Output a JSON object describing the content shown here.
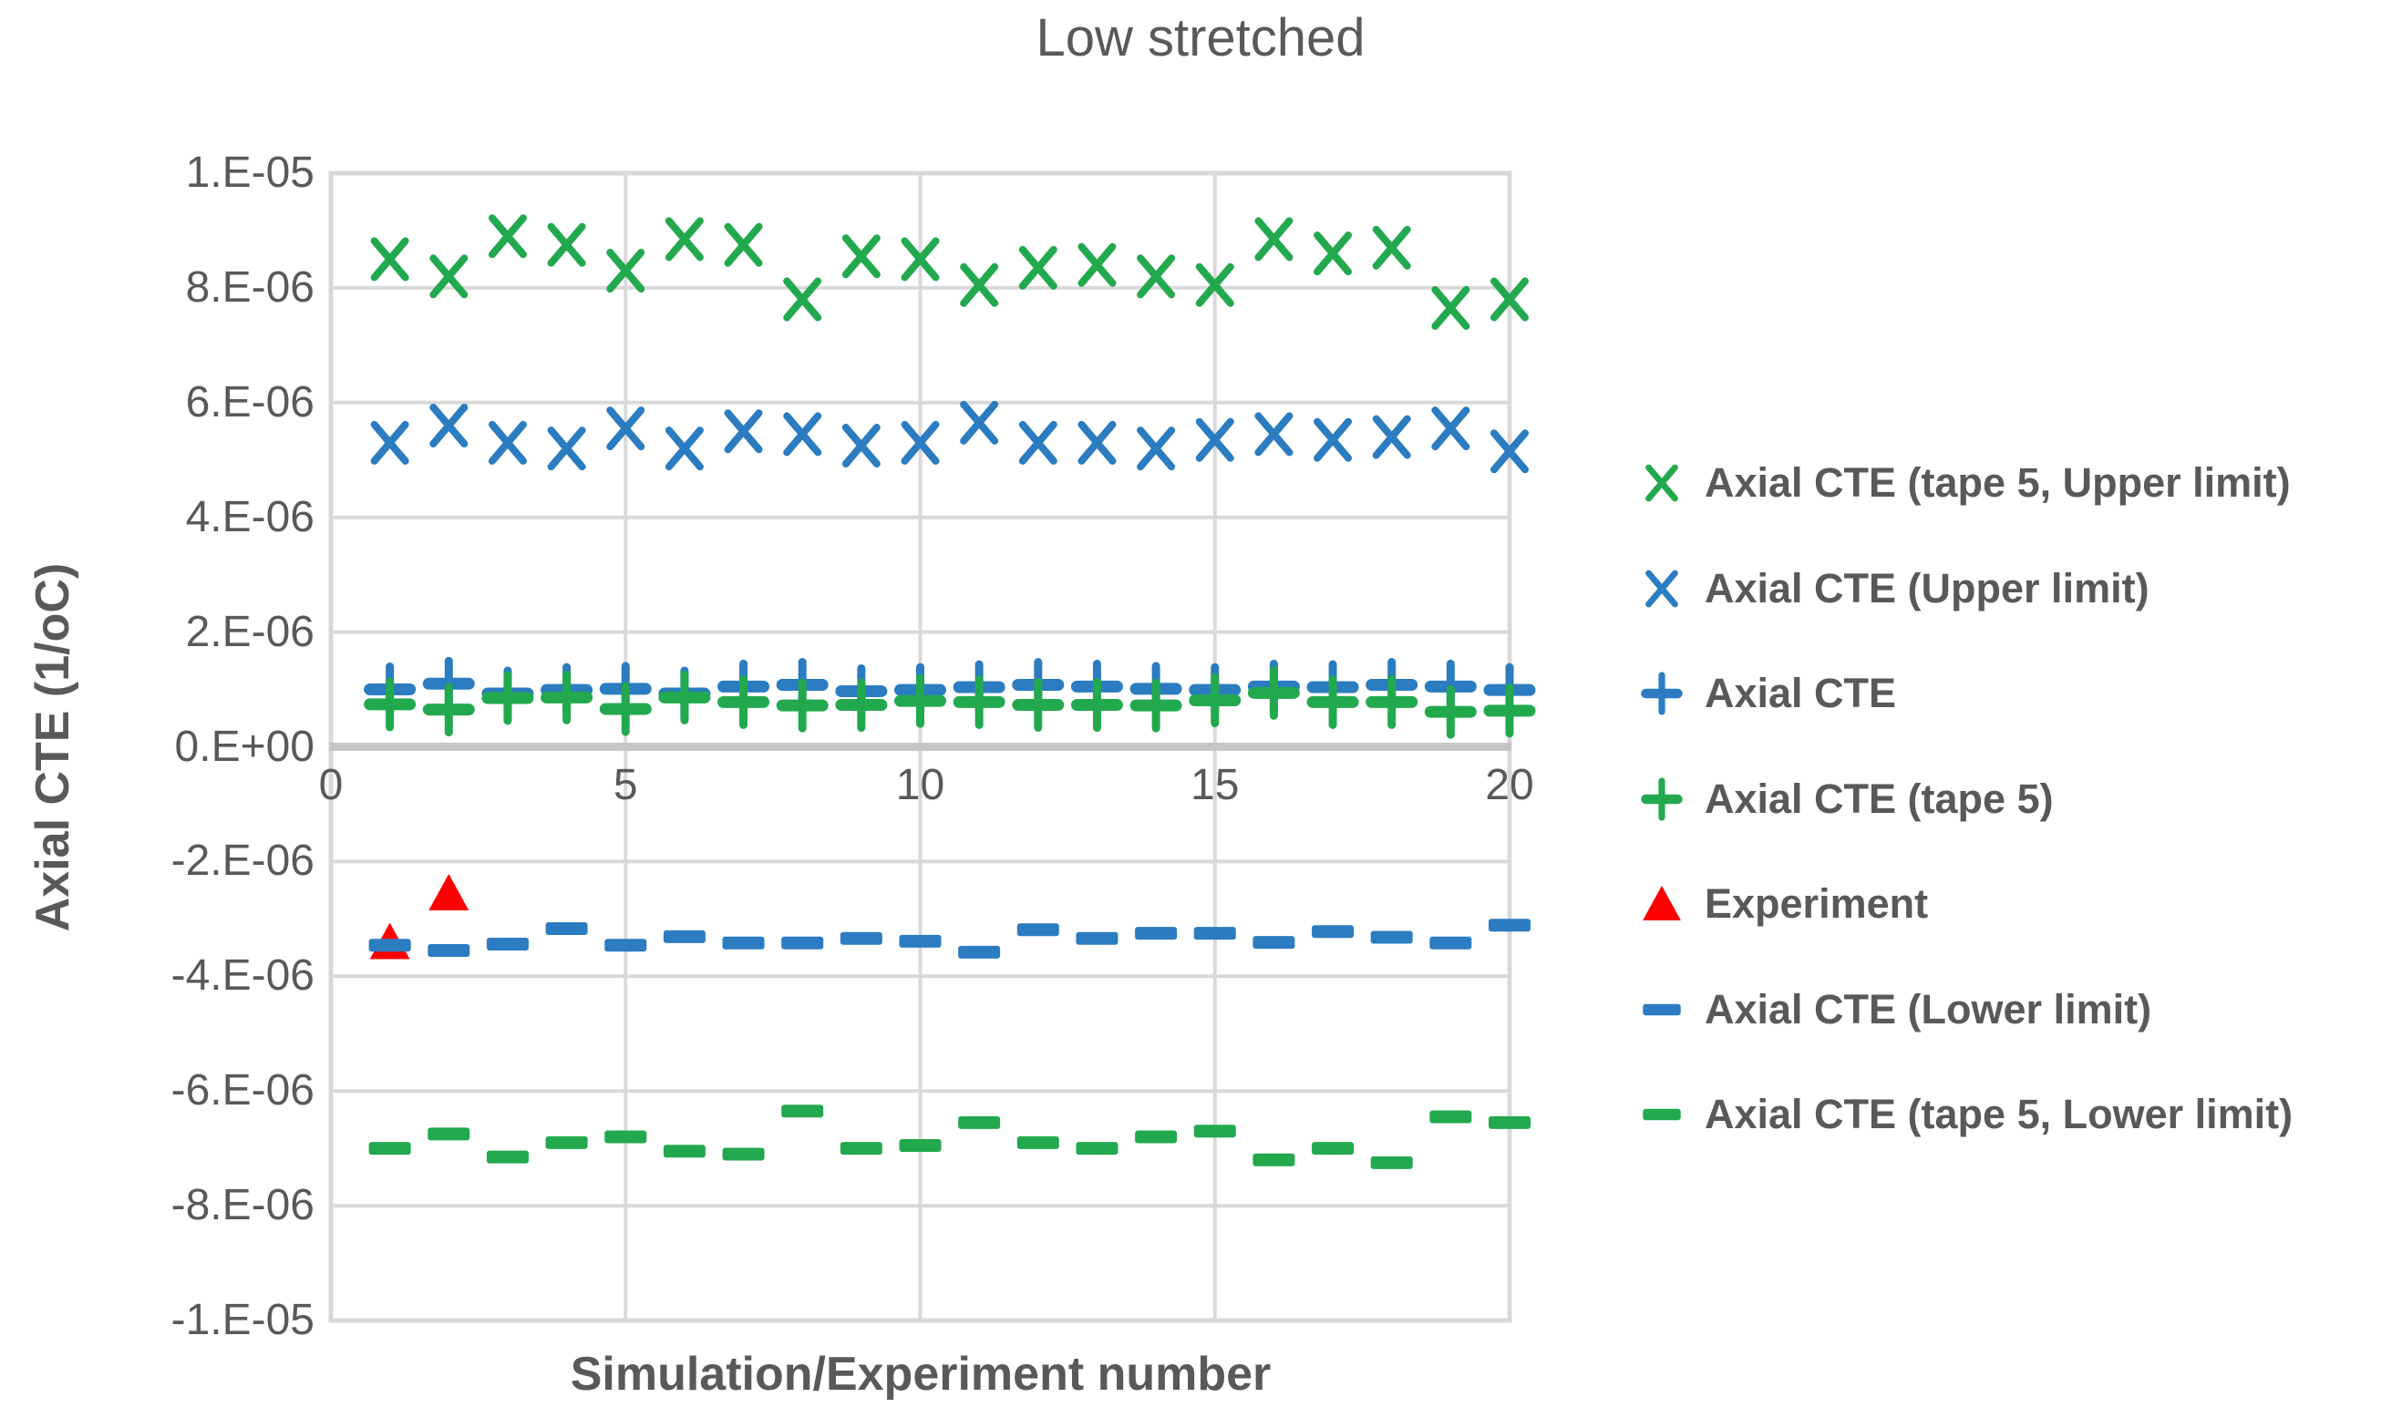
{
  "palette": {
    "green": "#22A94E",
    "blue": "#2B7CC0",
    "red": "#FF0000",
    "text": "#595959",
    "grid": "#D9D9D9",
    "axis_line": "#C6C6C6"
  },
  "chart_data": {
    "type": "scatter",
    "title": "Low stretched",
    "xlabel": "Simulation/Experiment number",
    "ylabel": "Axial CTE (1/oC)",
    "xlim": [
      0,
      20
    ],
    "ylim": [
      -1e-05,
      1e-05
    ],
    "grid": true,
    "legend_position": "right",
    "x_tick_values": [
      0,
      5,
      10,
      15,
      20
    ],
    "x_tick_labels": [
      "0",
      "5",
      "10",
      "15",
      "20"
    ],
    "y_tick_values": [
      1e-05,
      8e-06,
      6e-06,
      4e-06,
      2e-06,
      0.0,
      -2e-06,
      -4e-06,
      -6e-06,
      -8e-06,
      -1e-05
    ],
    "y_tick_labels": [
      "1.E-05",
      "8.E-06",
      "6.E-06",
      "4.E-06",
      "2.E-06",
      "0.E+00",
      "-2.E-06",
      "-4.E-06",
      "-6.E-06",
      "-8.E-06",
      "-1.E-05"
    ],
    "x": [
      1,
      2,
      3,
      4,
      5,
      6,
      7,
      8,
      9,
      10,
      11,
      12,
      13,
      14,
      15,
      16,
      17,
      18,
      19,
      20
    ],
    "series": [
      {
        "name": "Axial CTE (tape 5, Upper limit)",
        "marker": "x-cross",
        "color": "#22A94E",
        "y": [
          8.5e-06,
          8.2e-06,
          8.9e-06,
          8.75e-06,
          8.3e-06,
          8.85e-06,
          8.75e-06,
          7.8e-06,
          8.55e-06,
          8.5e-06,
          8.05e-06,
          8.35e-06,
          8.4e-06,
          8.2e-06,
          8.05e-06,
          8.85e-06,
          8.6e-06,
          8.7e-06,
          7.65e-06,
          7.8e-06
        ]
      },
      {
        "name": "Axial CTE (Upper limit)",
        "marker": "x-cross",
        "color": "#2B7CC0",
        "y": [
          5.3e-06,
          5.6e-06,
          5.3e-06,
          5.2e-06,
          5.55e-06,
          5.2e-06,
          5.5e-06,
          5.45e-06,
          5.25e-06,
          5.3e-06,
          5.65e-06,
          5.3e-06,
          5.3e-06,
          5.2e-06,
          5.35e-06,
          5.45e-06,
          5.35e-06,
          5.4e-06,
          5.55e-06,
          5.15e-06
        ]
      },
      {
        "name": "Axial CTE",
        "marker": "plus",
        "color": "#2B7CC0",
        "y": [
          1e-06,
          1.1e-06,
          9.3e-07,
          9.9e-07,
          1.01e-06,
          9.3e-07,
          1.05e-06,
          1.08e-06,
          9.7e-07,
          9.9e-07,
          1.04e-06,
          1.08e-06,
          1.05e-06,
          1.01e-06,
          9.9e-07,
          1.05e-06,
          1.04e-06,
          1.08e-06,
          1.05e-06,
          9.9e-07
        ]
      },
      {
        "name": "Axial CTE (tape 5)",
        "marker": "plus",
        "color": "#22A94E",
        "y": [
          7.4e-07,
          6.5e-07,
          8.5e-07,
          8.6e-07,
          6.6e-07,
          8.6e-07,
          7.8e-07,
          7.2e-07,
          7.3e-07,
          8e-07,
          7.8e-07,
          7.3e-07,
          7.3e-07,
          7.2e-07,
          8.1e-07,
          9.4e-07,
          7.8e-07,
          7.8e-07,
          6.1e-07,
          6.3e-07
        ]
      },
      {
        "name": "Experiment",
        "marker": "triangle-up",
        "color": "#FF0000",
        "x": [
          1,
          2
        ],
        "y": [
          -3.4e-06,
          -2.55e-06
        ]
      },
      {
        "name": "Axial CTE (Lower limit)",
        "marker": "dash",
        "color": "#2B7CC0",
        "y": [
          -3.46e-06,
          -3.55e-06,
          -3.44e-06,
          -3.17e-06,
          -3.46e-06,
          -3.31e-06,
          -3.42e-06,
          -3.42e-06,
          -3.34e-06,
          -3.39e-06,
          -3.58e-06,
          -3.19e-06,
          -3.34e-06,
          -3.25e-06,
          -3.25e-06,
          -3.41e-06,
          -3.22e-06,
          -3.32e-06,
          -3.42e-06,
          -3.11e-06
        ]
      },
      {
        "name": "Axial CTE (tape 5, Lower limit)",
        "marker": "dash",
        "color": "#22A94E",
        "y": [
          -7e-06,
          -6.75e-06,
          -7.15e-06,
          -6.9e-06,
          -6.8e-06,
          -7.05e-06,
          -7.1e-06,
          -6.35e-06,
          -7e-06,
          -6.95e-06,
          -6.55e-06,
          -6.9e-06,
          -7e-06,
          -6.8e-06,
          -6.7e-06,
          -7.2e-06,
          -7e-06,
          -7.25e-06,
          -6.45e-06,
          -6.55e-06
        ]
      }
    ]
  }
}
